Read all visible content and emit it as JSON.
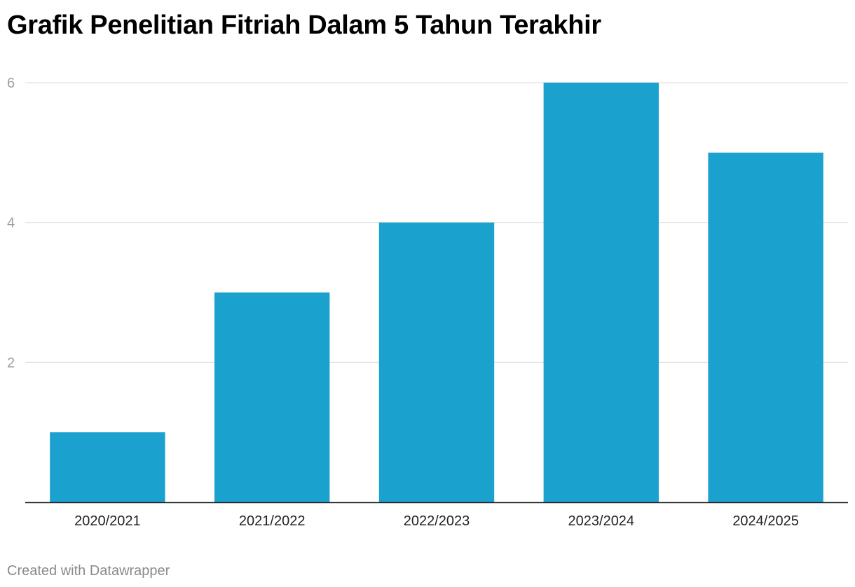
{
  "chart_data": {
    "type": "bar",
    "title": "Grafik Penelitian Fitriah Dalam 5 Tahun Terakhir",
    "categories": [
      "2020/2021",
      "2021/2022",
      "2022/2023",
      "2023/2024",
      "2024/2025"
    ],
    "values": [
      1,
      3,
      4,
      6,
      5
    ],
    "ylim": [
      0,
      6
    ],
    "yticks": [
      2,
      4,
      6
    ],
    "grid": true,
    "legend": "none",
    "bar_color": "#1aa1ce"
  },
  "footer": {
    "credit": "Created with Datawrapper"
  }
}
